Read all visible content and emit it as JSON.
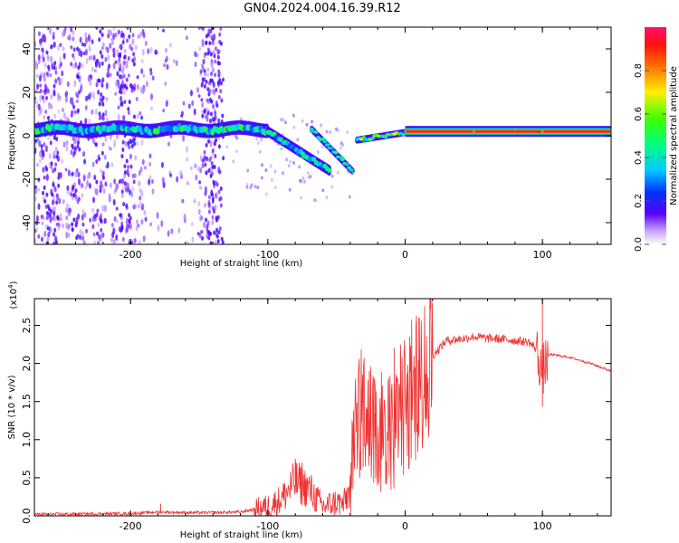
{
  "title": "GN04.2024.004.16.39.R12",
  "chart_data": [
    {
      "type": "heatmap",
      "xlabel": "Height of straight line (km)",
      "ylabel": "Frequency (Hz)",
      "xlim": [
        -270,
        150
      ],
      "ylim": [
        -50,
        50
      ],
      "xticks": [
        -200,
        -100,
        0,
        100
      ],
      "yticks": [
        -40,
        -20,
        0,
        20,
        40
      ],
      "colorbar": {
        "label": "Normalized spectral amplitude",
        "range": [
          0,
          1
        ],
        "ticks": [
          0.0,
          0.2,
          0.4,
          0.6,
          0.8
        ]
      },
      "ridge": [
        {
          "x": -270,
          "y": 3
        },
        {
          "x": -200,
          "y": 3
        },
        {
          "x": -130,
          "y": 4
        },
        {
          "x": -100,
          "y": 2
        },
        {
          "x": -90,
          "y": -6
        },
        {
          "x": -75,
          "y": -10
        },
        {
          "x": -62,
          "y": -13
        },
        {
          "x": -55,
          "y": -16
        },
        {
          "x": -68,
          "y": 2
        },
        {
          "x": -55,
          "y": -4
        },
        {
          "x": -45,
          "y": -10
        },
        {
          "x": -38,
          "y": -17
        },
        {
          "x": -30,
          "y": -3
        },
        {
          "x": -15,
          "y": 0
        },
        {
          "x": 0,
          "y": 2
        },
        {
          "x": 50,
          "y": 2
        },
        {
          "x": 80,
          "y": 3
        },
        {
          "x": 100,
          "y": 2
        },
        {
          "x": 150,
          "y": 2
        }
      ]
    },
    {
      "type": "line",
      "xlabel": "Height of straight line (km)",
      "ylabel": "SNR (10 * v/v)",
      "y_multiplier": "(x10",
      "y_multiplier_exp": "4",
      "xlim": [
        -270,
        150
      ],
      "ylim": [
        0,
        2.85
      ],
      "xticks": [
        -200,
        -100,
        0,
        100
      ],
      "yticks": [
        0.0,
        0.5,
        1.0,
        1.5,
        2.0,
        2.5
      ],
      "series_color": "#ee3333",
      "envelope": {
        "x": [
          -270,
          -200,
          -180,
          -150,
          -120,
          -100,
          -90,
          -80,
          -70,
          -60,
          -50,
          -45,
          -40,
          -35,
          -30,
          -20,
          -10,
          0,
          10,
          20,
          30,
          40,
          50,
          60,
          70,
          80,
          90,
          95,
          100,
          105,
          120,
          135,
          150
        ],
        "y": [
          0.02,
          0.03,
          0.05,
          0.04,
          0.05,
          0.12,
          0.22,
          0.45,
          0.35,
          0.12,
          0.18,
          0.15,
          0.35,
          1.1,
          1.2,
          1.0,
          1.05,
          1.3,
          1.7,
          2.1,
          2.3,
          2.32,
          2.35,
          2.33,
          2.32,
          2.3,
          2.28,
          2.2,
          1.9,
          2.12,
          2.08,
          2.0,
          1.9
        ]
      },
      "spikes": [
        {
          "x": -178,
          "y": 0.16
        },
        {
          "x": -80,
          "y": 0.75
        },
        {
          "x": -75,
          "y": 0.7
        },
        {
          "x": -32,
          "y": 1.95
        },
        {
          "x": -26,
          "y": 1.9
        },
        {
          "x": -22,
          "y": 1.35
        },
        {
          "x": -8,
          "y": 2.2
        },
        {
          "x": 10,
          "y": 2.6
        },
        {
          "x": 100,
          "y": 2.85
        },
        {
          "x": 100,
          "y": 1.43
        }
      ]
    }
  ]
}
